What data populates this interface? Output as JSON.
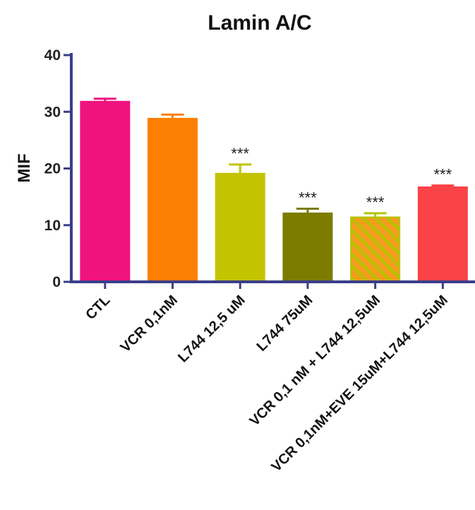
{
  "chart_data": {
    "type": "bar",
    "title": "Lamin A/C",
    "ylabel": "MIF",
    "xlabel": "",
    "ylim": [
      0,
      40
    ],
    "yticks": [
      0,
      10,
      20,
      30,
      40
    ],
    "grid": false,
    "categories": [
      "CTL",
      "VCR 0,1nM",
      "L744 12,5 uM",
      "L744 75uM",
      "VCR 0,1 nM + L744 12,5uM",
      "VCR 0,1nM+EVE 15uM+L744 12,5uM"
    ],
    "values": [
      31.8,
      28.8,
      19.1,
      12.1,
      11.4,
      16.7
    ],
    "errors": [
      0.5,
      0.7,
      1.6,
      0.8,
      0.7,
      0.3
    ],
    "significance": [
      "",
      "",
      "***",
      "***",
      "***",
      "***"
    ],
    "colors": [
      "#f0137f",
      "#fb7f02",
      "#c3c300",
      "#7c7c00",
      "#f39c1e",
      "#f94346"
    ],
    "patterns": [
      "solid",
      "solid",
      "solid",
      "solid",
      "hatched",
      "solid"
    ],
    "hatch_color": "#b5c400",
    "axis_color": "#3b3e8a"
  }
}
